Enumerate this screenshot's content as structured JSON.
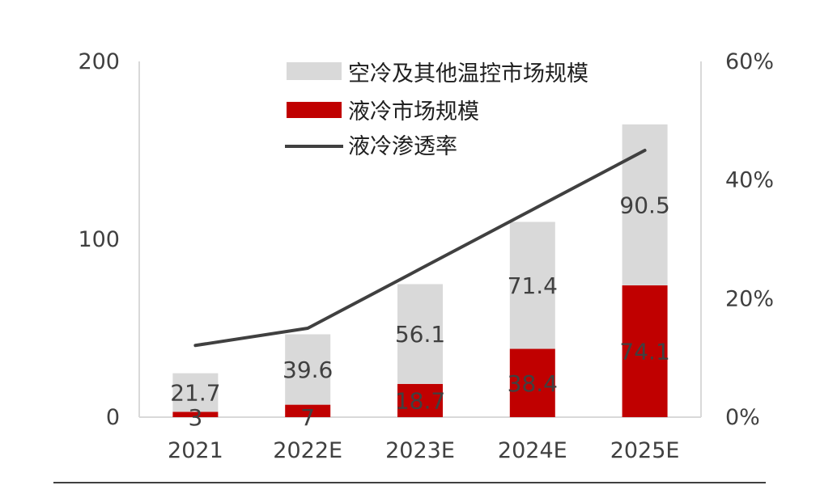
{
  "chart_data": {
    "type": "bar",
    "stacked": true,
    "categories": [
      "2021",
      "2022E",
      "2023E",
      "2024E",
      "2025E"
    ],
    "series": [
      {
        "name": "液冷市场规模",
        "kind": "bar",
        "axis": "left",
        "color": "#c00000",
        "values": [
          3,
          7,
          18.7,
          38.4,
          74.1
        ],
        "labels": [
          "3",
          "7",
          "18.7",
          "38.4",
          "74.1"
        ]
      },
      {
        "name": "空冷及其他温控市场规模",
        "kind": "bar",
        "axis": "left",
        "color": "#d9d9d9",
        "values": [
          21.7,
          39.6,
          56.1,
          71.4,
          90.5
        ],
        "labels": [
          "21.7",
          "39.6",
          "56.1",
          "71.4",
          "90.5"
        ]
      },
      {
        "name": "液冷渗透率",
        "kind": "line",
        "axis": "right",
        "color": "#404040",
        "values": [
          12.1,
          15.0,
          25.0,
          35.0,
          45.0
        ]
      }
    ],
    "legend": [
      "空冷及其他温控市场规模",
      "液冷市场规模",
      "液冷渗透率"
    ],
    "legend_position": "top-center",
    "ylim": [
      0,
      200
    ],
    "yticks": [
      "0",
      "100",
      "200"
    ],
    "y2lim": [
      0,
      60
    ],
    "y2ticks": [
      "0%",
      "20%",
      "40%",
      "60%"
    ],
    "grid": false
  }
}
